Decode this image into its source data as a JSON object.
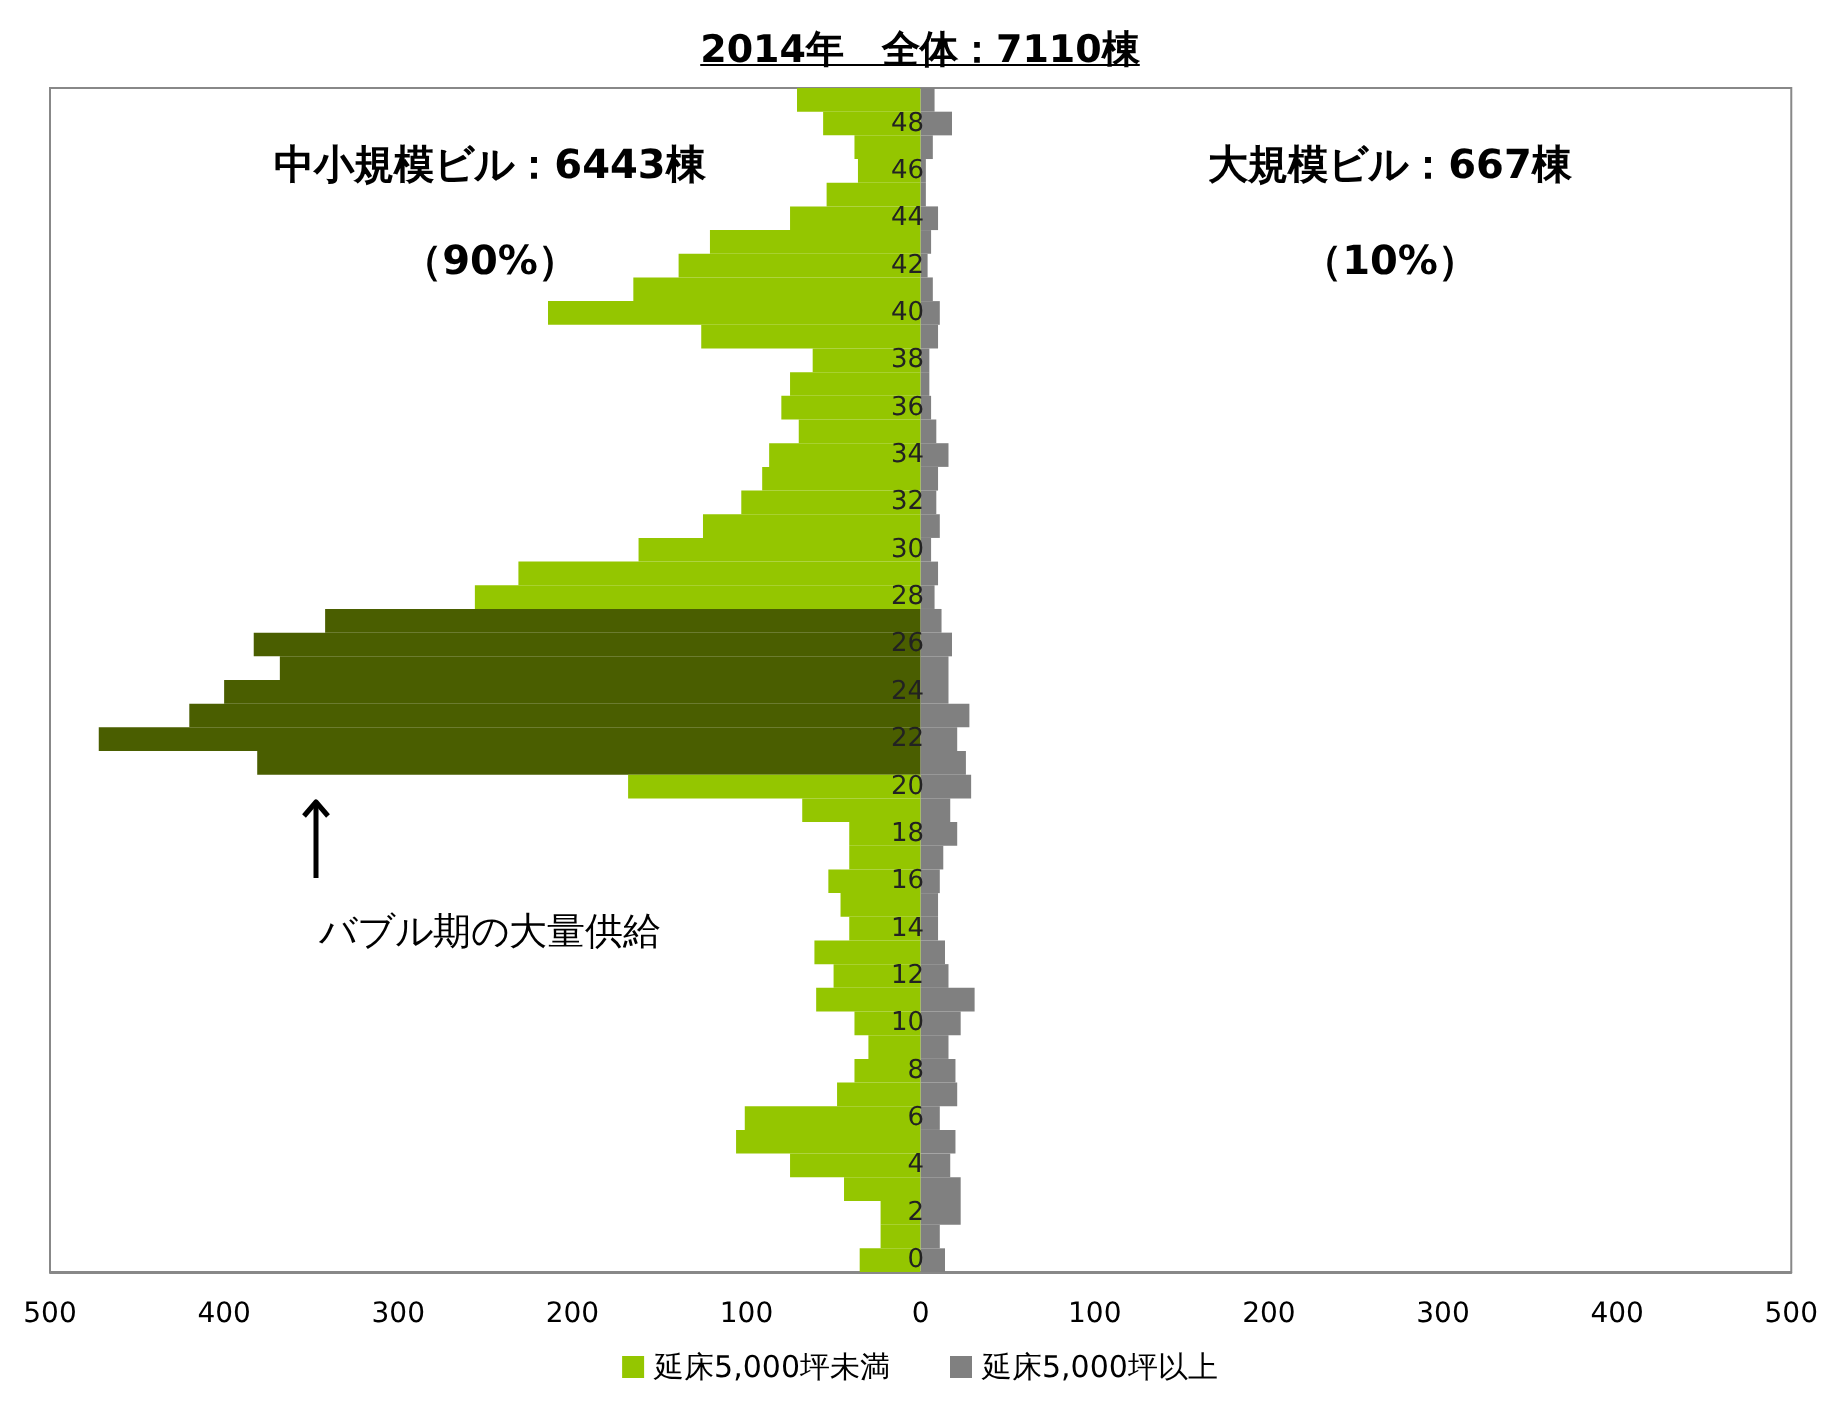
{
  "chart_data": {
    "type": "bar",
    "orientation": "horizontal",
    "title": "2014年　全体：7110棟",
    "categories": [
      null,
      "48",
      null,
      "46",
      null,
      "44",
      null,
      "42",
      null,
      "40",
      null,
      "38",
      null,
      "36",
      null,
      "34",
      null,
      "32",
      null,
      "30",
      null,
      "28",
      null,
      "26",
      null,
      "24",
      null,
      "22",
      null,
      "20",
      null,
      "18",
      null,
      "16",
      null,
      "14",
      null,
      "12",
      null,
      "10",
      null,
      "8",
      null,
      "6",
      null,
      "4",
      null,
      "2",
      null,
      "0"
    ],
    "series": [
      {
        "name": "延床5,000坪未満",
        "color": "#94c600",
        "values": [
          -71,
          -56,
          -38,
          -36,
          -54,
          -75,
          -121,
          -139,
          -165,
          -214,
          -126,
          -62,
          -75,
          -80,
          -70,
          -87,
          -91,
          -103,
          -125,
          -162,
          -231,
          -256,
          -342,
          -383,
          -368,
          -400,
          -420,
          -472,
          -381,
          -168,
          -68,
          -41,
          -41,
          -53,
          -46,
          -41,
          -61,
          -50,
          -60,
          -38,
          -30,
          -38,
          -48,
          -101,
          -106,
          -75,
          -44,
          -23,
          -23,
          -35
        ],
        "colors": [
          "#94c600",
          "#94c600",
          "#94c600",
          "#94c600",
          "#94c600",
          "#94c600",
          "#94c600",
          "#94c600",
          "#94c600",
          "#94c600",
          "#94c600",
          "#94c600",
          "#94c600",
          "#94c600",
          "#94c600",
          "#94c600",
          "#94c600",
          "#94c600",
          "#94c600",
          "#94c600",
          "#94c600",
          "#94c600",
          "#4a5e00",
          "#4a5e00",
          "#4a5e00",
          "#4a5e00",
          "#4a5e00",
          "#4a5e00",
          "#4a5e00",
          "#94c600",
          "#94c600",
          "#94c600",
          "#94c600",
          "#94c600",
          "#94c600",
          "#94c600",
          "#94c600",
          "#94c600",
          "#94c600",
          "#94c600",
          "#94c600",
          "#94c600",
          "#94c600",
          "#94c600",
          "#94c600",
          "#94c600",
          "#94c600",
          "#94c600",
          "#94c600",
          "#94c600"
        ]
      },
      {
        "name": "延床5,000坪以上",
        "color": "#808080",
        "values": [
          8,
          18,
          7,
          3,
          3,
          10,
          6,
          4,
          7,
          11,
          10,
          5,
          5,
          6,
          9,
          16,
          10,
          9,
          11,
          6,
          10,
          8,
          12,
          18,
          16,
          16,
          28,
          21,
          26,
          29,
          17,
          21,
          13,
          11,
          10,
          10,
          14,
          16,
          31,
          23,
          16,
          20,
          21,
          11,
          20,
          17,
          23,
          23,
          11,
          14
        ]
      }
    ],
    "xlim": [
      -500,
      500
    ],
    "xticks": [
      {
        "value": -500,
        "label": "500"
      },
      {
        "value": -400,
        "label": "400"
      },
      {
        "value": -300,
        "label": "300"
      },
      {
        "value": -200,
        "label": "200"
      },
      {
        "value": -100,
        "label": "100"
      },
      0,
      100,
      200,
      300,
      400,
      500
    ],
    "annotations": [
      "中小規模ビル：6443棟",
      "（90%）",
      "大規模ビル：667棟",
      "（10%）",
      "バブル期の大量供給"
    ],
    "legend": "bottom",
    "grid": false,
    "stacked": true
  }
}
